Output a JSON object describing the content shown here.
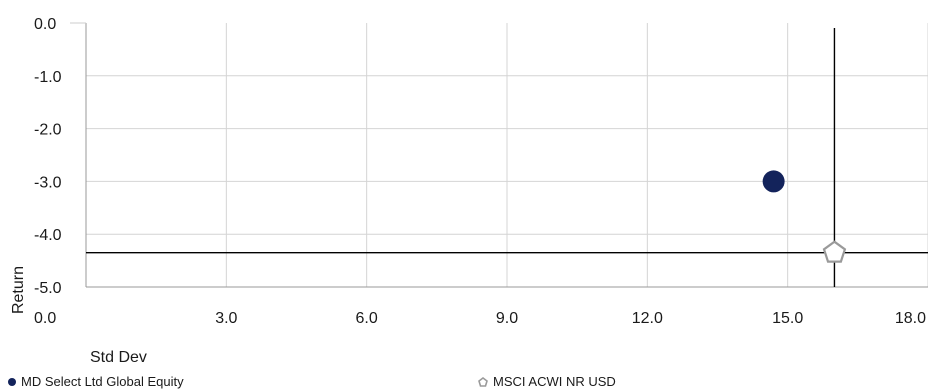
{
  "chart_data": {
    "type": "scatter",
    "xlabel": "Std Dev",
    "ylabel": "Return",
    "xlim": [
      0,
      18
    ],
    "ylim": [
      -5,
      0
    ],
    "x_ticks": [
      "0.0",
      "3.0",
      "6.0",
      "9.0",
      "12.0",
      "15.0",
      "18.0"
    ],
    "y_ticks": [
      "0.0",
      "-1.0",
      "-2.0",
      "-3.0",
      "-4.0",
      "-5.0"
    ],
    "grid": true,
    "legend_position": "bottom",
    "series": [
      {
        "name": "MD Select Ltd Global Equity",
        "x": 14.7,
        "y": -3.0,
        "marker": "circle",
        "color": "#13235b"
      },
      {
        "name": "MSCI ACWI NR USD",
        "x": 16.0,
        "y": -4.35,
        "marker": "pentagon",
        "color": "#9a9a9a"
      }
    ],
    "reference_lines": {
      "x": 16.0,
      "y": -4.35
    }
  }
}
